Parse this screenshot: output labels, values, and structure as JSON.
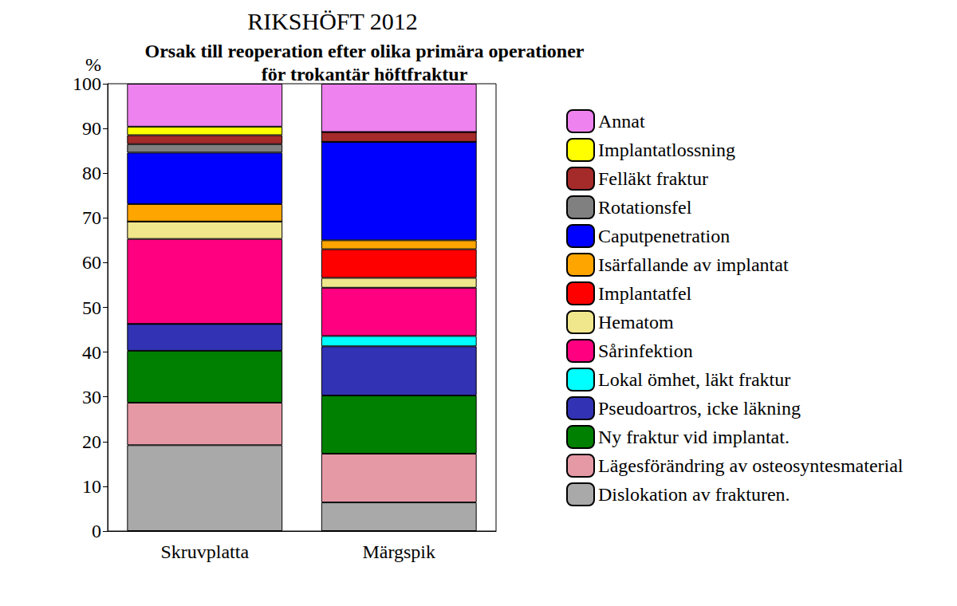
{
  "chart_data": {
    "type": "bar",
    "stacked": true,
    "title": "RIKSHÖFT 2012",
    "subtitle": "Orsak till reoperation efter olika primära operationer\nför trokantär höftfraktur",
    "ylabel": "%",
    "categories": [
      "Skruvplatta",
      "Märgspik"
    ],
    "ylim": [
      0,
      100
    ],
    "yticks": [
      0,
      10,
      20,
      30,
      40,
      50,
      60,
      70,
      80,
      90,
      100
    ],
    "grid": false,
    "legend": "right",
    "series": [
      {
        "name": "Dislokation av frakturen.",
        "color": "#a9a9a9",
        "values": [
          19.2,
          6.4
        ]
      },
      {
        "name": "Lägesförändring av osteosyntesmaterial",
        "color": "#e599a5",
        "values": [
          9.5,
          10.9
        ]
      },
      {
        "name": "Ny fraktur vid implantat.",
        "color": "#008000",
        "values": [
          11.6,
          13.0
        ]
      },
      {
        "name": "Pseudoartros, icke läkning",
        "color": "#3232b4",
        "values": [
          6.0,
          11.0
        ]
      },
      {
        "name": "Lokal ömhet, läkt fraktur",
        "color": "#00ffff",
        "values": [
          0,
          2.3
        ]
      },
      {
        "name": "Sårinfektion",
        "color": "#ff0080",
        "values": [
          19.0,
          10.8
        ]
      },
      {
        "name": "Hematom",
        "color": "#f0e68c",
        "values": [
          3.9,
          2.2
        ]
      },
      {
        "name": "Implantatfel",
        "color": "#ff0000",
        "values": [
          0,
          6.4
        ]
      },
      {
        "name": "Isärfallande av implantat",
        "color": "#ffa500",
        "values": [
          3.9,
          2.0
        ]
      },
      {
        "name": "Caputpenetration",
        "color": "#0000ff",
        "values": [
          11.5,
          22.0
        ]
      },
      {
        "name": "Rotationsfel",
        "color": "#808080",
        "values": [
          1.9,
          0
        ]
      },
      {
        "name": "Felläkt fraktur",
        "color": "#a52a2a",
        "values": [
          2.0,
          2.2
        ]
      },
      {
        "name": "Implantatlossning",
        "color": "#ffff00",
        "values": [
          1.9,
          0
        ]
      },
      {
        "name": "Annat",
        "color": "#ee82ee",
        "values": [
          9.6,
          10.8
        ]
      }
    ]
  }
}
